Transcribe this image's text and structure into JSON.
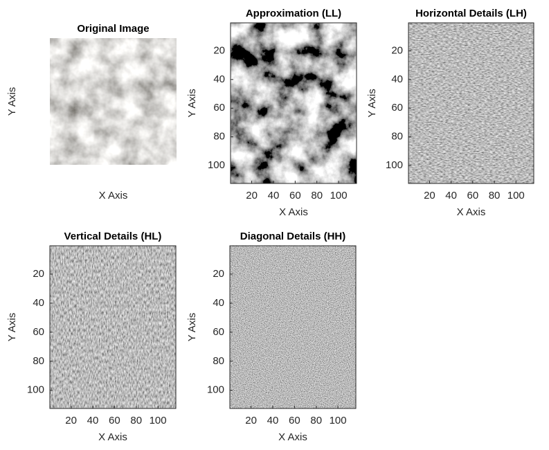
{
  "chart_data": [
    {
      "type": "image",
      "title": "Original Image",
      "xlabel": "X Axis",
      "ylabel": "Y Axis"
    },
    {
      "type": "image",
      "title": "Approximation (LL)",
      "xlabel": "X Axis",
      "ylabel": "Y Axis",
      "xlim": [
        0.5,
        116.5
      ],
      "ylim": [
        0.5,
        112.5
      ],
      "xticks": [
        20,
        40,
        60,
        80,
        100
      ],
      "yticks": [
        20,
        40,
        60,
        80,
        100
      ],
      "y_reversed": true
    },
    {
      "type": "image",
      "title": "Horizontal Details (LH)",
      "xlabel": "X Axis",
      "ylabel": "Y Axis",
      "xlim": [
        0.5,
        116.5
      ],
      "ylim": [
        0.5,
        112.5
      ],
      "xticks": [
        20,
        40,
        60,
        80,
        100
      ],
      "yticks": [
        20,
        40,
        60,
        80,
        100
      ],
      "y_reversed": true
    },
    {
      "type": "image",
      "title": "Vertical Details (HL)",
      "xlabel": "X Axis",
      "ylabel": "Y Axis",
      "xlim": [
        0.5,
        116.5
      ],
      "ylim": [
        0.5,
        112.5
      ],
      "xticks": [
        20,
        40,
        60,
        80,
        100
      ],
      "yticks": [
        20,
        40,
        60,
        80,
        100
      ],
      "y_reversed": true
    },
    {
      "type": "image",
      "title": "Diagonal Details (HH)",
      "xlabel": "X Axis",
      "ylabel": "Y Axis",
      "xlim": [
        0.5,
        116.5
      ],
      "ylim": [
        0.5,
        112.5
      ],
      "xticks": [
        20,
        40,
        60,
        80,
        100
      ],
      "yticks": [
        20,
        40,
        60,
        80,
        100
      ],
      "y_reversed": true
    }
  ]
}
